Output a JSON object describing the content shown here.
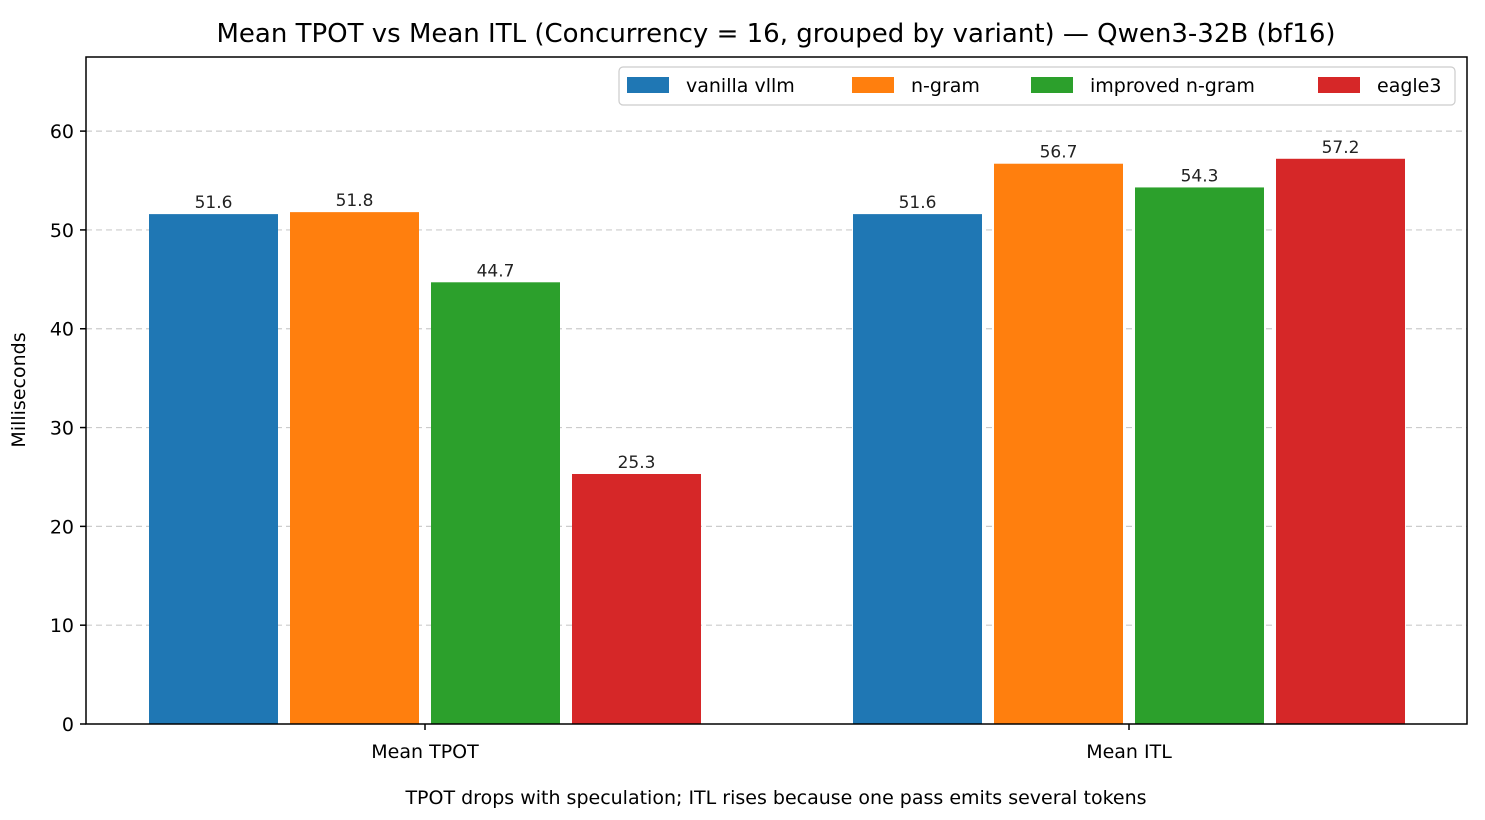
{
  "chart_data": {
    "type": "bar",
    "title": "Mean TPOT vs Mean ITL (Concurrency = 16, grouped by variant) — Qwen3-32B (bf16)",
    "xlabel": "TPOT drops with speculation; ITL rises because one pass emits several tokens",
    "ylabel": "Milliseconds",
    "categories": [
      "Mean TPOT",
      "Mean ITL"
    ],
    "ylim": [
      0,
      67.5
    ],
    "yticks": [
      0,
      10,
      20,
      30,
      40,
      50,
      60
    ],
    "grid": "horizontal dashed",
    "legend_position": "top-right",
    "series": [
      {
        "name": "vanilla vllm",
        "color": "#1f77b4",
        "values": [
          51.6,
          51.6
        ],
        "labels": [
          "51.6",
          "51.6"
        ]
      },
      {
        "name": "n-gram",
        "color": "#ff7f0e",
        "values": [
          51.8,
          56.7
        ],
        "labels": [
          "51.8",
          "56.7"
        ]
      },
      {
        "name": "improved n-gram",
        "color": "#2ca02c",
        "values": [
          44.7,
          54.3
        ],
        "labels": [
          "44.7",
          "54.3"
        ]
      },
      {
        "name": "eagle3",
        "color": "#d62728",
        "values": [
          25.3,
          57.2
        ],
        "labels": [
          "25.3",
          "57.2"
        ]
      }
    ]
  }
}
